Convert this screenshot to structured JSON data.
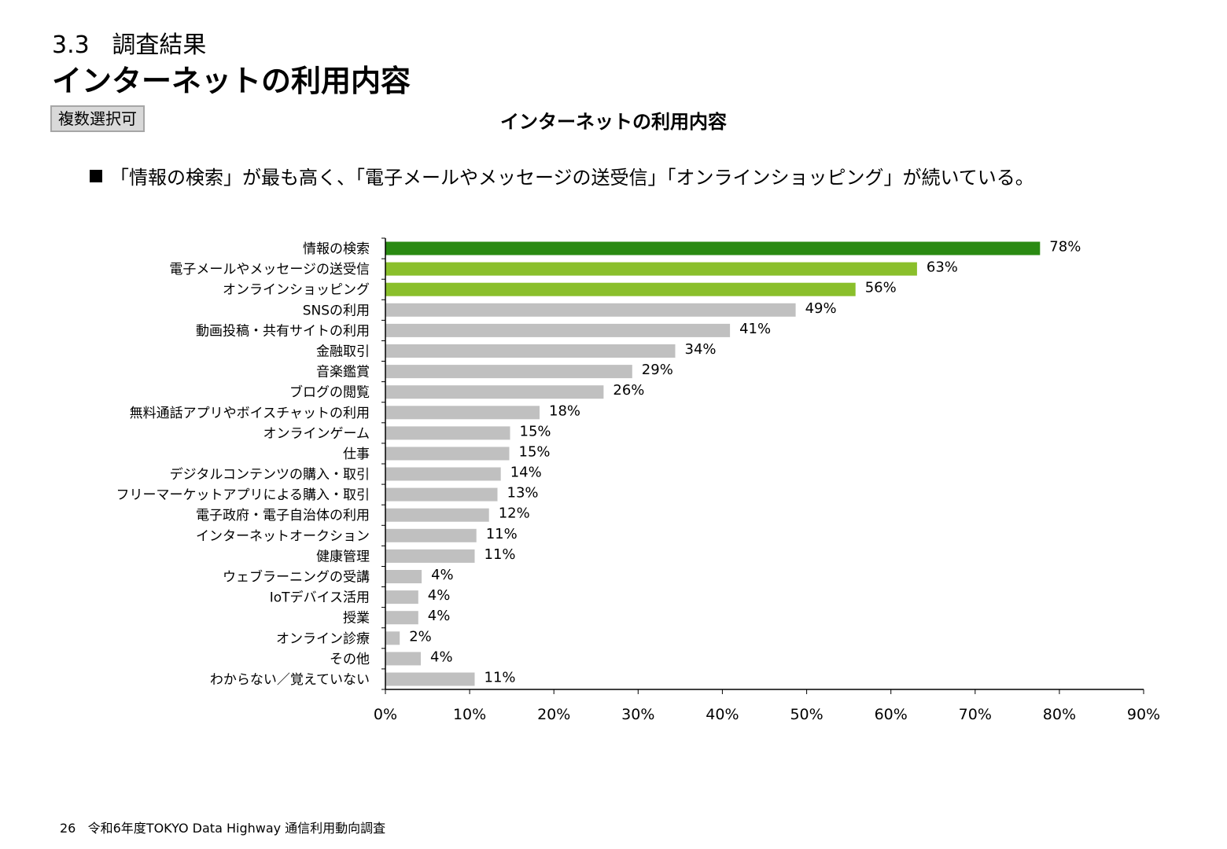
{
  "header": {
    "section_number": "3.3",
    "section_title": "調査結果",
    "page_title": "インターネットの利用内容",
    "badge": "複数選択可"
  },
  "summary": "「情報の検索」が最も高く、「電子メールやメッセージの送受信」「オンラインショッピング」が続いている。",
  "footer": {
    "page_number": "26",
    "report_name": "令和6年度TOKYO Data Highway 通信利用動向調査"
  },
  "colors": {
    "top1": "#2a8a12",
    "top2_3": "#8abf2b",
    "other": "#c0c0c0"
  },
  "chart_data": {
    "type": "bar",
    "orientation": "horizontal",
    "title": "インターネットの利用内容",
    "categories": [
      "情報の検索",
      "電子メールやメッセージの送受信",
      "オンラインショッピング",
      "SNSの利用",
      "動画投稿・共有サイトの利用",
      "金融取引",
      "音楽鑑賞",
      "ブログの閲覧",
      "無料通話アプリやボイスチャットの利用",
      "オンラインゲーム",
      "仕事",
      "デジタルコンテンツの購入・取引",
      "フリーマーケットアプリによる購入・取引",
      "電子政府・電子自治体の利用",
      "インターネットオークション",
      "健康管理",
      "ウェブラーニングの受講",
      "IoTデバイス活用",
      "授業",
      "オンライン診療",
      "その他",
      "わからない／覚えていない"
    ],
    "values": [
      77.7,
      63.1,
      55.8,
      48.7,
      40.9,
      34.4,
      29.3,
      25.9,
      18.3,
      14.8,
      14.7,
      13.7,
      13.3,
      12.3,
      10.8,
      10.6,
      4.3,
      3.9,
      3.9,
      1.7,
      4.2,
      10.6
    ],
    "labels": [
      "78%",
      "63%",
      "56%",
      "49%",
      "41%",
      "34%",
      "29%",
      "26%",
      "18%",
      "15%",
      "15%",
      "14%",
      "13%",
      "12%",
      "11%",
      "11%",
      "4%",
      "4%",
      "4%",
      "2%",
      "4%",
      "11%"
    ],
    "color_index": [
      0,
      1,
      1,
      2,
      2,
      2,
      2,
      2,
      2,
      2,
      2,
      2,
      2,
      2,
      2,
      2,
      2,
      2,
      2,
      2,
      2,
      2
    ],
    "xlim": [
      0,
      90
    ],
    "xticks": [
      "0%",
      "10%",
      "20%",
      "30%",
      "40%",
      "50%",
      "60%",
      "70%",
      "80%",
      "90%"
    ],
    "xlabel": "",
    "ylabel": "",
    "grid": false,
    "legend": "none"
  }
}
